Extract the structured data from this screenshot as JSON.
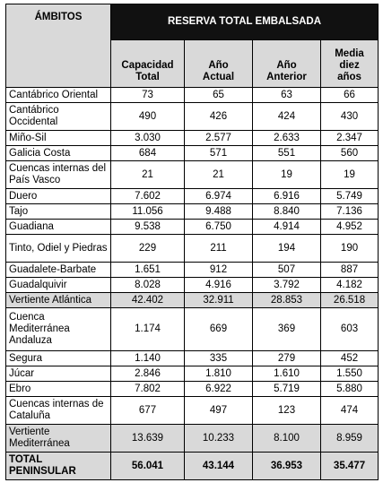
{
  "table": {
    "header_group": "RESERVA TOTAL EMBALSADA",
    "col_ambitos": "ÁMBITOS",
    "col_capacidad": "Capacidad Total",
    "col_actual": "Año Actual",
    "col_anterior": "Año Anterior",
    "col_media": "Media diez años",
    "rows": [
      {
        "name": "Cantábrico Oriental",
        "capacidad": "73",
        "actual": "65",
        "anterior": "63",
        "media": "66"
      },
      {
        "name": "Cantábrico Occidental",
        "capacidad": "490",
        "actual": "426",
        "anterior": "424",
        "media": "430"
      },
      {
        "name": "Miño-Sil",
        "capacidad": "3.030",
        "actual": "2.577",
        "anterior": "2.633",
        "media": "2.347"
      },
      {
        "name": "Galicia Costa",
        "capacidad": "684",
        "actual": "571",
        "anterior": "551",
        "media": "560"
      },
      {
        "name": "Cuencas internas del País Vasco",
        "capacidad": "21",
        "actual": "21",
        "anterior": "19",
        "media": "19"
      },
      {
        "name": "Duero",
        "capacidad": "7.602",
        "actual": "6.974",
        "anterior": "6.916",
        "media": "5.749"
      },
      {
        "name": "Tajo",
        "capacidad": "11.056",
        "actual": "9.488",
        "anterior": "8.840",
        "media": "7.136"
      },
      {
        "name": "Guadiana",
        "capacidad": "9.538",
        "actual": "6.750",
        "anterior": "4.914",
        "media": "4.952"
      },
      {
        "name": "Tinto, Odiel y Piedras",
        "capacidad": "229",
        "actual": "211",
        "anterior": "194",
        "media": "190"
      },
      {
        "name": "Guadalete-Barbate",
        "capacidad": "1.651",
        "actual": "912",
        "anterior": "507",
        "media": "887"
      },
      {
        "name": "Guadalquivir",
        "capacidad": "8.028",
        "actual": "4.916",
        "anterior": "3.792",
        "media": "4.182"
      },
      {
        "name": "Vertiente Atlántica",
        "capacidad": "42.402",
        "actual": "32.911",
        "anterior": "28.853",
        "media": "26.518",
        "kind": "sub"
      },
      {
        "name": "Cuenca Mediterránea Andaluza",
        "capacidad": "1.174",
        "actual": "669",
        "anterior": "369",
        "media": "603"
      },
      {
        "name": "Segura",
        "capacidad": "1.140",
        "actual": "335",
        "anterior": "279",
        "media": "452"
      },
      {
        "name": "Júcar",
        "capacidad": "2.846",
        "actual": "1.810",
        "anterior": "1.610",
        "media": "1.550"
      },
      {
        "name": "Ebro",
        "capacidad": "7.802",
        "actual": "6.922",
        "anterior": "5.719",
        "media": "5.880"
      },
      {
        "name": "Cuencas internas de Cataluña",
        "capacidad": "677",
        "actual": "497",
        "anterior": "123",
        "media": "474"
      },
      {
        "name": "Vertiente Mediterránea",
        "capacidad": "13.639",
        "actual": "10.233",
        "anterior": "8.100",
        "media": "8.959",
        "kind": "sub"
      },
      {
        "name": "TOTAL PENINSULAR",
        "capacidad": "56.041",
        "actual": "43.144",
        "anterior": "36.953",
        "media": "35.477",
        "kind": "total"
      }
    ]
  }
}
